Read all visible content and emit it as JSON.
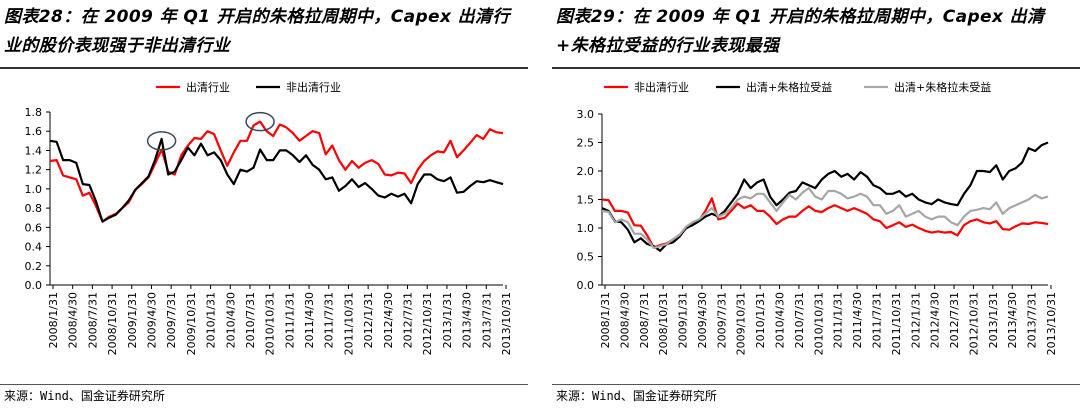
{
  "chart_data": [
    {
      "id": "left",
      "type": "line",
      "title": "图表28：在 2009 年 Q1 开启的朱格拉周期中，Capex 出清行业的股价表现强于非出清行业",
      "source": "来源：Wind、国金证券研究所",
      "xlabel": "",
      "ylabel": "",
      "ylim": [
        0.0,
        1.8
      ],
      "yticks": [
        "0.0",
        "0.2",
        "0.4",
        "0.6",
        "0.8",
        "1.0",
        "1.2",
        "1.4",
        "1.6",
        "1.8"
      ],
      "xticks": [
        "2008/1/31",
        "2008/4/30",
        "2008/7/31",
        "2008/10/31",
        "2009/1/31",
        "2009/4/30",
        "2009/7/31",
        "2009/10/31",
        "2010/1/31",
        "2010/4/30",
        "2010/7/31",
        "2010/10/31",
        "2011/1/31",
        "2011/4/30",
        "2011/7/31",
        "2011/10/31",
        "2012/1/31",
        "2012/4/30",
        "2012/7/31",
        "2012/10/31",
        "2013/1/31",
        "2013/4/30",
        "2013/7/31",
        "2013/10/31"
      ],
      "grid": false,
      "legend_position": "top",
      "series": [
        {
          "name": "出清行业",
          "color": "#ff0000",
          "values": [
            1.29,
            1.3,
            1.14,
            1.12,
            1.1,
            0.93,
            0.96,
            0.82,
            0.66,
            0.71,
            0.74,
            0.8,
            0.86,
            0.99,
            1.05,
            1.12,
            1.26,
            1.41,
            1.18,
            1.15,
            1.35,
            1.45,
            1.53,
            1.52,
            1.6,
            1.57,
            1.4,
            1.24,
            1.38,
            1.5,
            1.5,
            1.66,
            1.7,
            1.6,
            1.55,
            1.67,
            1.64,
            1.58,
            1.5,
            1.55,
            1.6,
            1.58,
            1.36,
            1.45,
            1.3,
            1.2,
            1.29,
            1.22,
            1.27,
            1.3,
            1.26,
            1.15,
            1.14,
            1.17,
            1.16,
            1.06,
            1.2,
            1.29,
            1.35,
            1.39,
            1.38,
            1.5,
            1.33,
            1.4,
            1.48,
            1.56,
            1.52,
            1.62,
            1.59,
            1.58
          ]
        },
        {
          "name": "非出清行业",
          "color": "#000000",
          "values": [
            1.5,
            1.49,
            1.3,
            1.3,
            1.27,
            1.05,
            1.04,
            0.87,
            0.66,
            0.7,
            0.73,
            0.8,
            0.88,
            0.99,
            1.06,
            1.13,
            1.3,
            1.52,
            1.15,
            1.18,
            1.3,
            1.43,
            1.35,
            1.47,
            1.35,
            1.38,
            1.3,
            1.15,
            1.05,
            1.2,
            1.18,
            1.22,
            1.41,
            1.3,
            1.3,
            1.4,
            1.4,
            1.35,
            1.28,
            1.35,
            1.25,
            1.2,
            1.1,
            1.12,
            0.98,
            1.03,
            1.1,
            1.02,
            1.06,
            1.0,
            0.93,
            0.91,
            0.95,
            0.92,
            0.95,
            0.85,
            1.05,
            1.15,
            1.15,
            1.1,
            1.08,
            1.12,
            0.96,
            0.97,
            1.03,
            1.08,
            1.07,
            1.09,
            1.07,
            1.05
          ]
        }
      ],
      "annotations": [
        {
          "kind": "circle",
          "at_index": 17,
          "value": 1.5
        },
        {
          "kind": "circle",
          "at_index": 32,
          "value": 1.7
        }
      ]
    },
    {
      "id": "right",
      "type": "line",
      "title": "图表29：在 2009 年 Q1 开启的朱格拉周期中，Capex 出清+朱格拉受益的行业表现最强",
      "source": "来源：Wind、国金证券研究所",
      "xlabel": "",
      "ylabel": "",
      "ylim": [
        0.0,
        3.0
      ],
      "yticks": [
        "0.0",
        "0.5",
        "1.0",
        "1.5",
        "2.0",
        "2.5",
        "3.0"
      ],
      "xticks": [
        "2008/1/31",
        "2008/4/30",
        "2008/7/31",
        "2008/10/31",
        "2009/1/31",
        "2009/4/30",
        "2009/7/31",
        "2009/10/31",
        "2010/1/31",
        "2010/4/30",
        "2010/7/31",
        "2010/10/31",
        "2011/1/31",
        "2011/4/30",
        "2011/7/31",
        "2011/10/31",
        "2012/1/31",
        "2012/4/30",
        "2012/7/31",
        "2012/10/31",
        "2013/1/31",
        "2013/4/30",
        "2013/7/31",
        "2013/10/31"
      ],
      "grid": false,
      "legend_position": "top",
      "series": [
        {
          "name": "非出清行业",
          "color": "#ff0000",
          "values": [
            1.5,
            1.49,
            1.3,
            1.3,
            1.27,
            1.05,
            1.04,
            0.87,
            0.66,
            0.7,
            0.73,
            0.8,
            0.88,
            0.99,
            1.06,
            1.13,
            1.3,
            1.52,
            1.15,
            1.18,
            1.3,
            1.43,
            1.35,
            1.4,
            1.3,
            1.3,
            1.2,
            1.07,
            1.15,
            1.2,
            1.2,
            1.3,
            1.38,
            1.3,
            1.28,
            1.35,
            1.4,
            1.35,
            1.3,
            1.35,
            1.3,
            1.25,
            1.15,
            1.12,
            1.0,
            1.05,
            1.1,
            1.02,
            1.06,
            1.0,
            0.95,
            0.92,
            0.94,
            0.92,
            0.93,
            0.87,
            1.05,
            1.12,
            1.15,
            1.1,
            1.08,
            1.12,
            0.98,
            0.97,
            1.03,
            1.08,
            1.07,
            1.1,
            1.09,
            1.07
          ]
        },
        {
          "name": "出清+朱格拉受益",
          "color": "#000000",
          "values": [
            1.35,
            1.3,
            1.12,
            1.1,
            0.97,
            0.75,
            0.82,
            0.72,
            0.68,
            0.6,
            0.72,
            0.75,
            0.85,
            1.0,
            1.05,
            1.12,
            1.2,
            1.25,
            1.2,
            1.3,
            1.45,
            1.6,
            1.85,
            1.7,
            1.8,
            1.85,
            1.55,
            1.4,
            1.5,
            1.62,
            1.65,
            1.8,
            1.75,
            1.7,
            1.85,
            1.95,
            2.0,
            1.9,
            1.95,
            1.85,
            1.98,
            1.9,
            1.75,
            1.7,
            1.6,
            1.6,
            1.65,
            1.55,
            1.6,
            1.5,
            1.45,
            1.42,
            1.5,
            1.45,
            1.42,
            1.4,
            1.6,
            1.75,
            2.0,
            2.0,
            1.98,
            2.1,
            1.85,
            2.0,
            2.05,
            2.15,
            2.4,
            2.35,
            2.45,
            2.5
          ]
        },
        {
          "name": "出清+朱格拉未受益",
          "color": "#a6a6a6",
          "values": [
            1.3,
            1.28,
            1.1,
            1.15,
            1.1,
            0.9,
            0.9,
            0.8,
            0.65,
            0.68,
            0.72,
            0.8,
            0.88,
            1.02,
            1.1,
            1.15,
            1.25,
            1.35,
            1.2,
            1.25,
            1.35,
            1.5,
            1.55,
            1.52,
            1.6,
            1.6,
            1.45,
            1.3,
            1.45,
            1.58,
            1.5,
            1.62,
            1.7,
            1.55,
            1.5,
            1.65,
            1.65,
            1.6,
            1.52,
            1.55,
            1.6,
            1.55,
            1.4,
            1.4,
            1.25,
            1.3,
            1.4,
            1.2,
            1.25,
            1.3,
            1.2,
            1.15,
            1.2,
            1.2,
            1.1,
            1.05,
            1.2,
            1.3,
            1.32,
            1.35,
            1.33,
            1.45,
            1.25,
            1.35,
            1.4,
            1.45,
            1.5,
            1.58,
            1.52,
            1.55
          ]
        }
      ]
    }
  ]
}
